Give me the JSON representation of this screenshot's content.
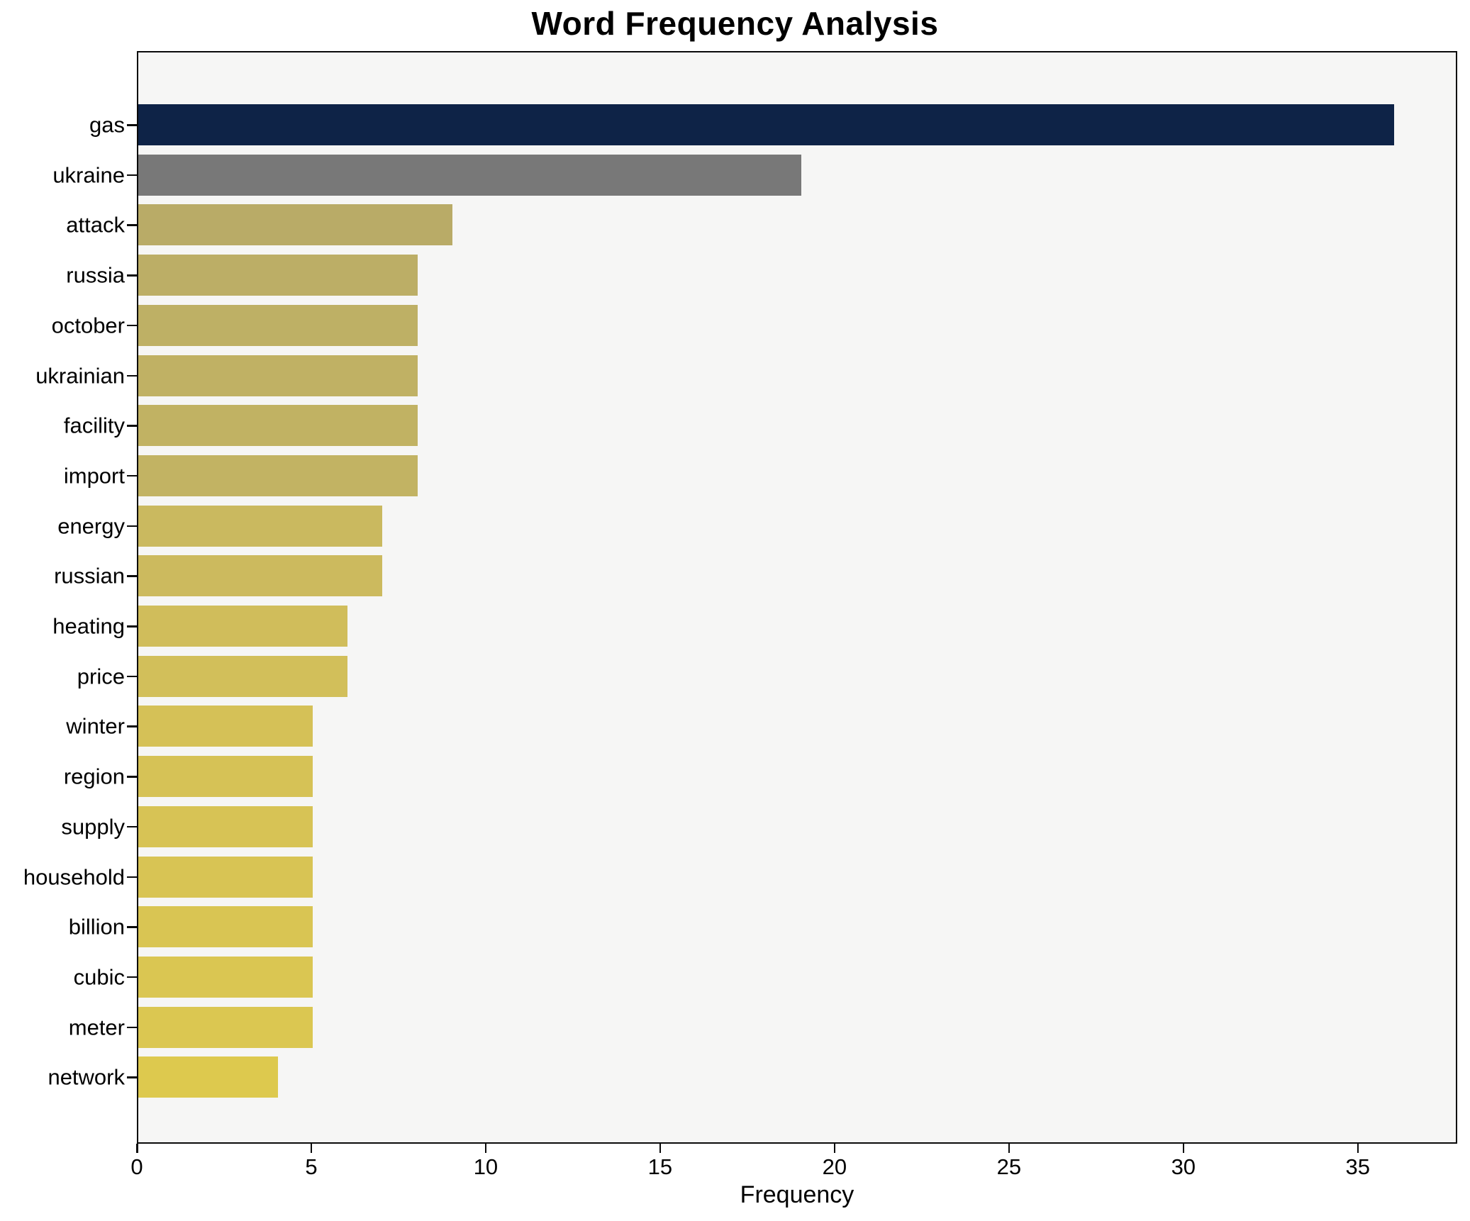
{
  "title": "Word Frequency Analysis",
  "chart_data": {
    "type": "bar",
    "orientation": "horizontal",
    "title": "Word Frequency Analysis",
    "xlabel": "Frequency",
    "ylabel": "",
    "categories": [
      "gas",
      "ukraine",
      "attack",
      "russia",
      "october",
      "ukrainian",
      "facility",
      "import",
      "energy",
      "russian",
      "heating",
      "price",
      "winter",
      "region",
      "supply",
      "household",
      "billion",
      "cubic",
      "meter",
      "network"
    ],
    "values": [
      36,
      19,
      9,
      8,
      8,
      8,
      8,
      8,
      7,
      7,
      6,
      6,
      5,
      5,
      5,
      5,
      5,
      5,
      5,
      4
    ],
    "bar_colors": [
      "#0e2347",
      "#787878",
      "#b9ab67",
      "#bcae66",
      "#beb065",
      "#c0b164",
      "#c1b263",
      "#c2b363",
      "#cab95f",
      "#ccba5e",
      "#d0bd5b",
      "#d2bf5a",
      "#d5c157",
      "#d6c256",
      "#d7c355",
      "#d8c454",
      "#d9c553",
      "#dac652",
      "#dbc751",
      "#ddc94e"
    ],
    "xlim": [
      0,
      37.85
    ],
    "xticks": [
      0,
      5,
      10,
      15,
      20,
      25,
      30,
      35
    ],
    "xtick_labels": [
      "0",
      "5",
      "10",
      "15",
      "20",
      "25",
      "30",
      "35"
    ],
    "grid": false,
    "legend": "none",
    "plot_background": "#f6f6f5",
    "figure_background": "#ffffff",
    "spine_color": "#0a0a0a"
  }
}
